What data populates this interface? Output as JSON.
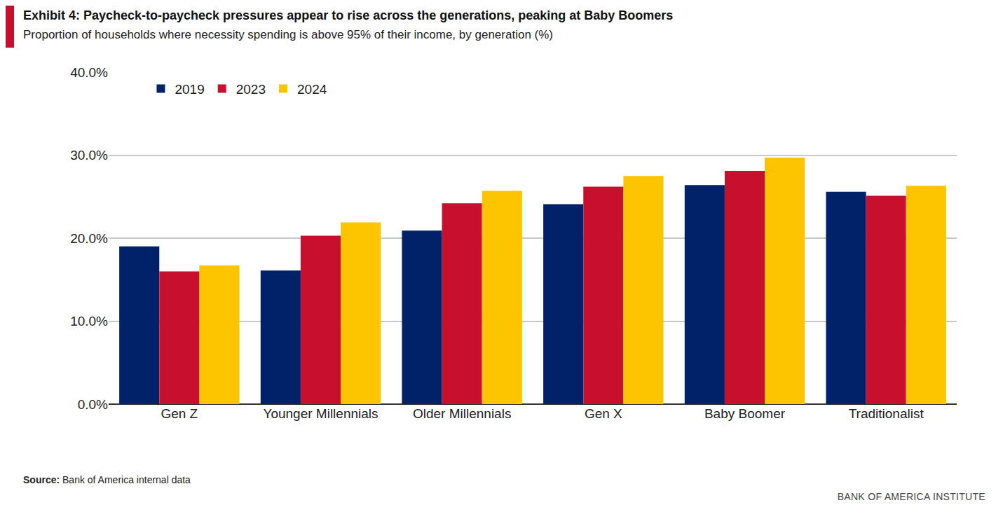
{
  "chart_data": {
    "type": "bar",
    "title": "Exhibit 4: Paycheck-to-paycheck pressures appear to rise across the generations, peaking at Baby Boomers",
    "subtitle": "Proportion of households where necessity spending is above 95% of their income, by generation (%)",
    "annotations": [
      "Source: Bank of America internal data",
      "BANK OF AMERICA INSTITUTE"
    ],
    "categories": [
      "Gen Z",
      "Younger Millennials",
      "Older Millennials",
      "Gen X",
      "Baby Boomer",
      "Traditionalist"
    ],
    "series": [
      {
        "name": "2019",
        "color": "#012169",
        "values": [
          19.0,
          16.1,
          20.9,
          24.1,
          26.4,
          25.6
        ]
      },
      {
        "name": "2023",
        "color": "#c8102e",
        "values": [
          16.0,
          20.3,
          24.2,
          26.2,
          28.1,
          25.1
        ]
      },
      {
        "name": "2024",
        "color": "#fdc500",
        "values": [
          16.7,
          21.9,
          25.7,
          27.5,
          29.7,
          26.3
        ]
      }
    ],
    "ylim": [
      0,
      40
    ],
    "yticks": [
      {
        "value": 0,
        "label": "0.0%"
      },
      {
        "value": 10,
        "label": "10.0%"
      },
      {
        "value": 20,
        "label": "20.0%"
      },
      {
        "value": 30,
        "label": "30.0%"
      },
      {
        "value": 40,
        "label": "40.0%"
      }
    ],
    "grid": true,
    "legend": "top left"
  }
}
